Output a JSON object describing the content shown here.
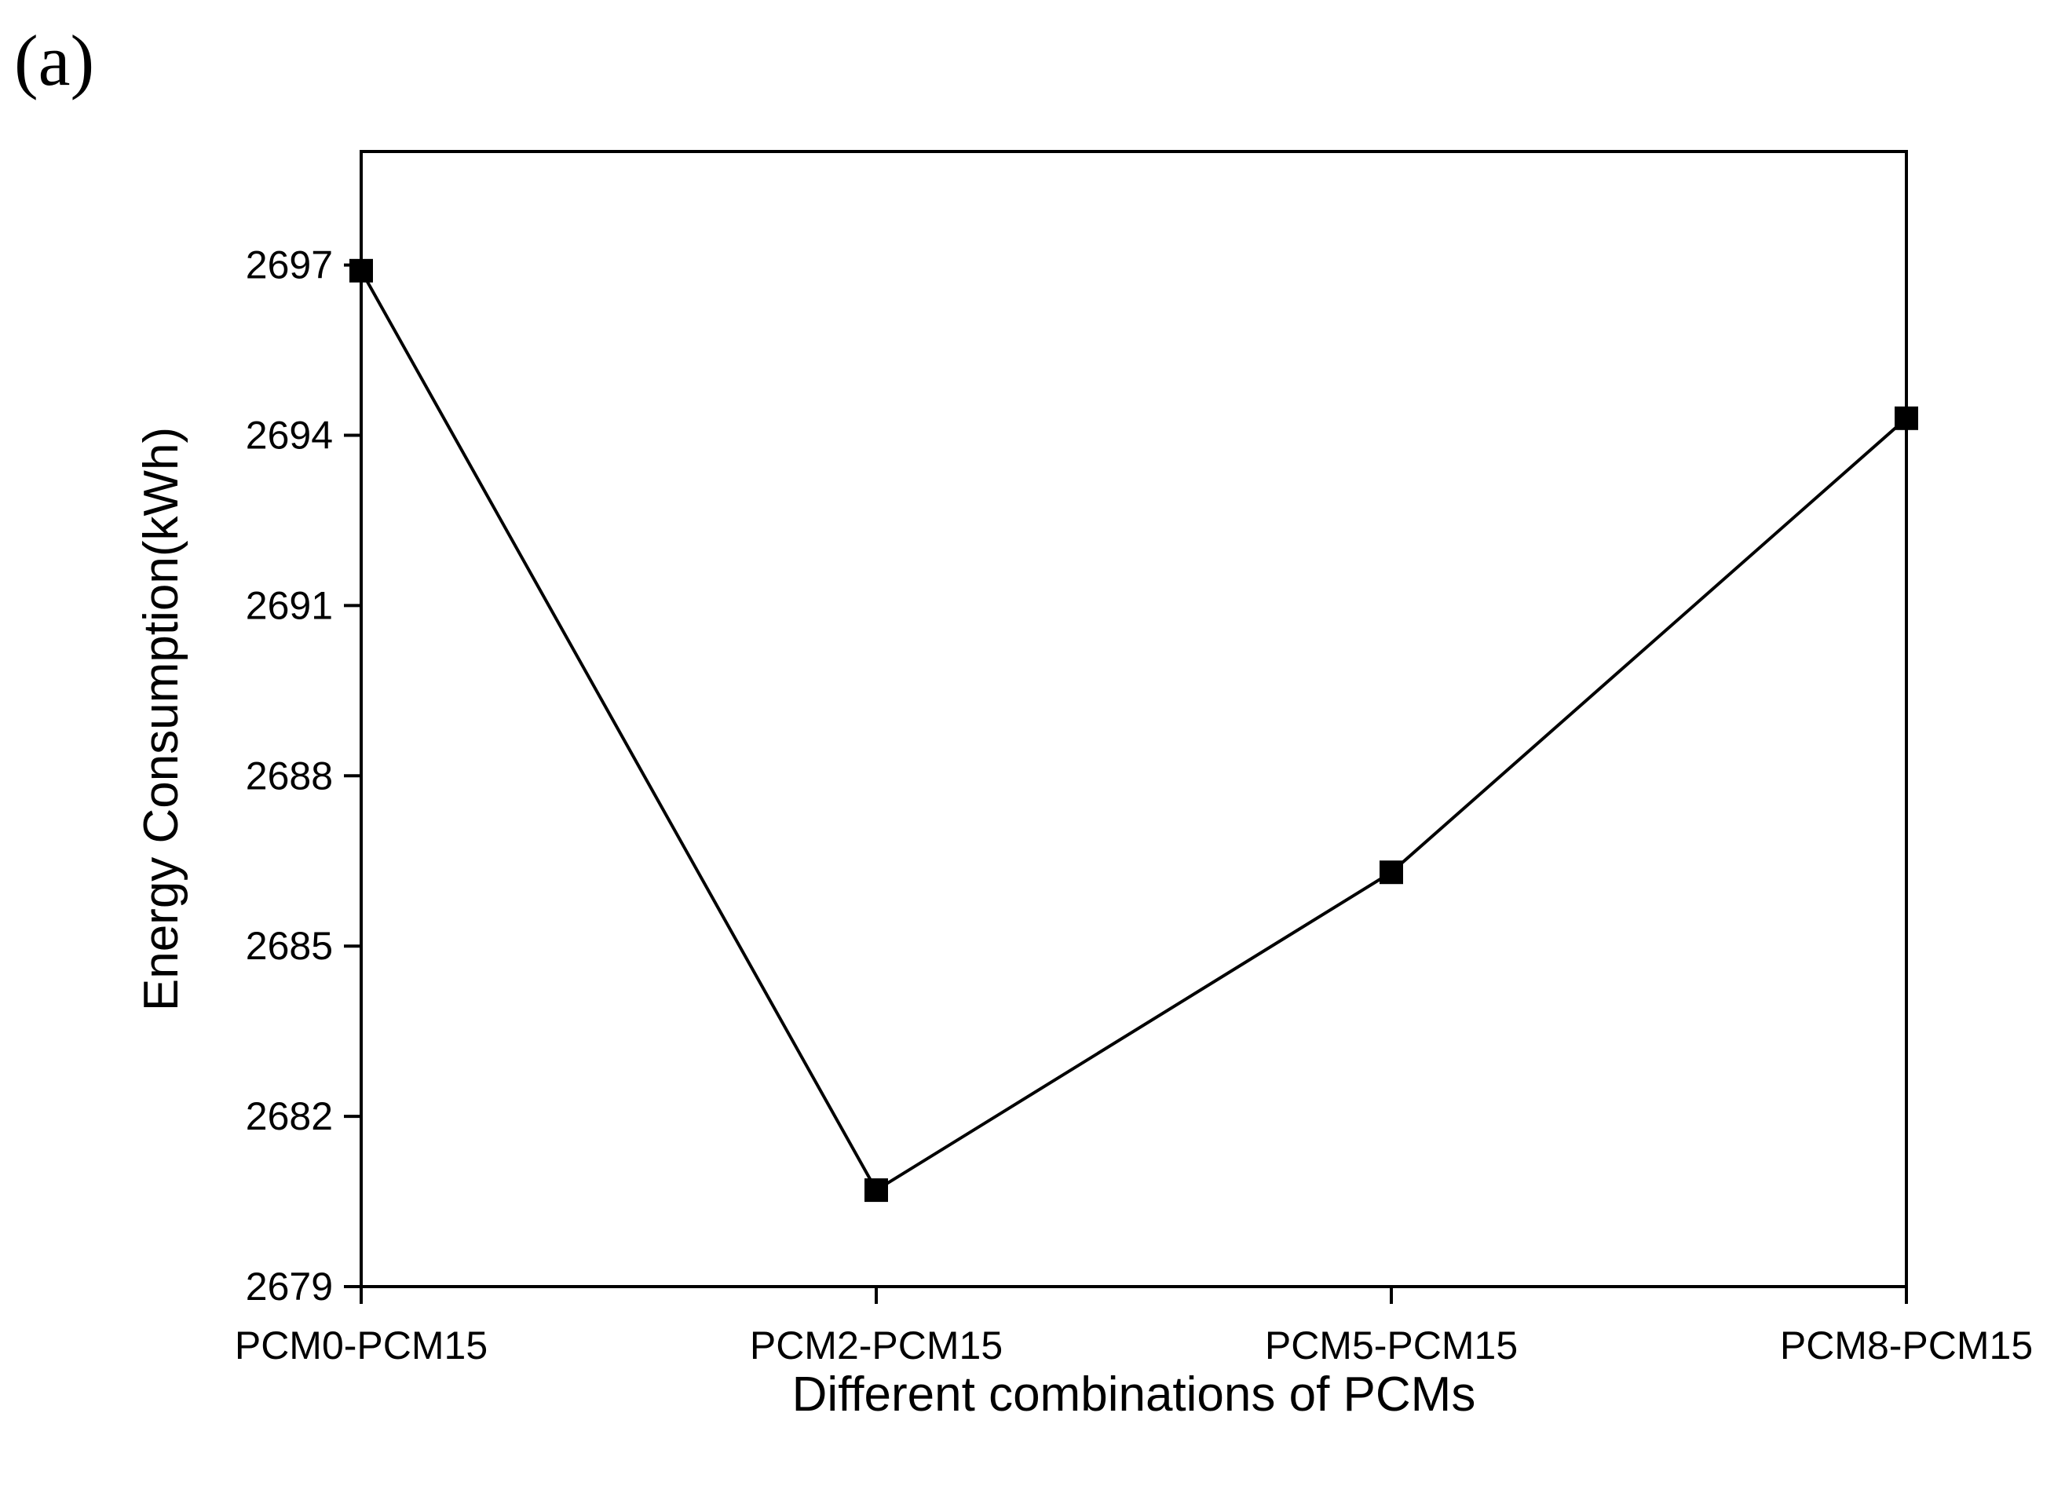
{
  "panel_label": "(a)",
  "chart_data": {
    "type": "line",
    "title": "",
    "xlabel": "Different combinations of PCMs",
    "ylabel": "Energy Consumption(kWh)",
    "categories": [
      "PCM0-PCM15",
      "PCM2-PCM15",
      "PCM5-PCM15",
      "PCM8-PCM15"
    ],
    "series": [
      {
        "values": [
          2696.9,
          2680.7,
          2686.3,
          2694.3
        ],
        "color": "#000000",
        "marker": "square"
      }
    ],
    "ylim": [
      2679,
      2699
    ],
    "yticks": [
      2679,
      2682,
      2685,
      2688,
      2691,
      2694,
      2697
    ],
    "grid": false,
    "legend": "none"
  }
}
